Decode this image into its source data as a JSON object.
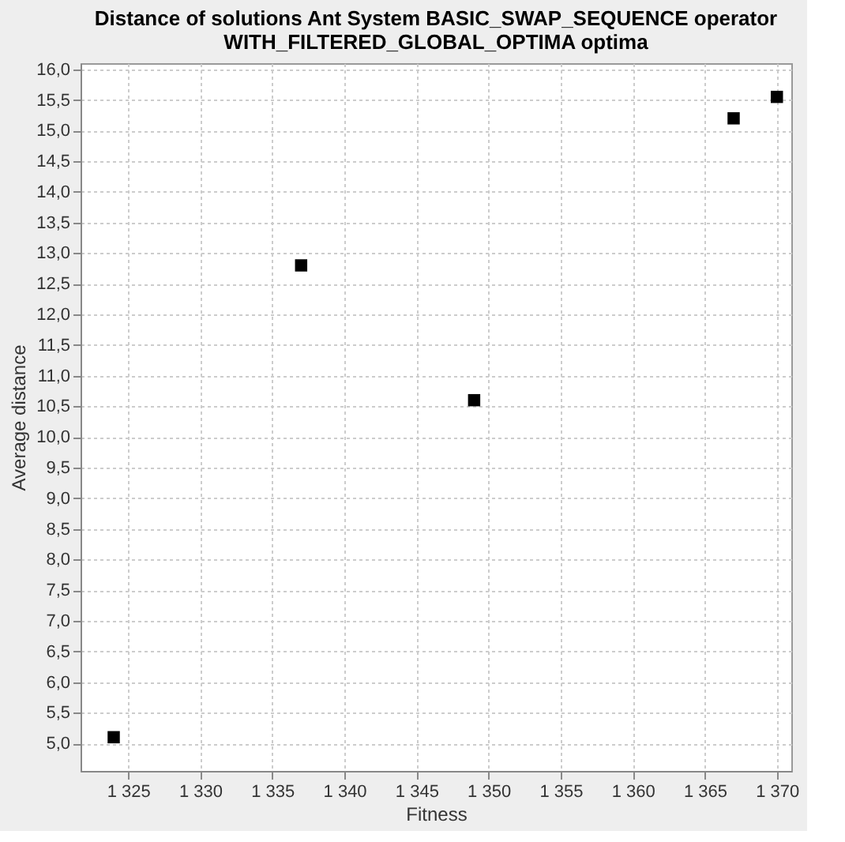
{
  "chart_data": {
    "type": "scatter",
    "title": "Distance of solutions Ant System BASIC_SWAP_SEQUENCE operator\nWITH_FILTERED_GLOBAL_OPTIMA optima",
    "xlabel": "Fitness",
    "ylabel": "Average distance",
    "x": [
      1324,
      1337,
      1349,
      1367,
      1370
    ],
    "series": [
      {
        "color": "#000000",
        "values": [
          5.1,
          12.8,
          10.6,
          15.2,
          15.55
        ]
      }
    ],
    "marker": "square",
    "grid": true,
    "xlim": [
      1321.7,
      1371
    ],
    "ylim": [
      4.55,
      16.1
    ],
    "xticks": [
      {
        "value": 1325,
        "label": "1 325"
      },
      {
        "value": 1330,
        "label": "1 330"
      },
      {
        "value": 1335,
        "label": "1 335"
      },
      {
        "value": 1340,
        "label": "1 340"
      },
      {
        "value": 1345,
        "label": "1 345"
      },
      {
        "value": 1350,
        "label": "1 350"
      },
      {
        "value": 1355,
        "label": "1 355"
      },
      {
        "value": 1360,
        "label": "1 360"
      },
      {
        "value": 1365,
        "label": "1 365"
      },
      {
        "value": 1370,
        "label": "1 370"
      }
    ],
    "yticks": [
      {
        "value": 5.0,
        "label": "5,0"
      },
      {
        "value": 5.5,
        "label": "5,5"
      },
      {
        "value": 6.0,
        "label": "6,0"
      },
      {
        "value": 6.5,
        "label": "6,5"
      },
      {
        "value": 7.0,
        "label": "7,0"
      },
      {
        "value": 7.5,
        "label": "7,5"
      },
      {
        "value": 8.0,
        "label": "8,0"
      },
      {
        "value": 8.5,
        "label": "8,5"
      },
      {
        "value": 9.0,
        "label": "9,0"
      },
      {
        "value": 9.5,
        "label": "9,5"
      },
      {
        "value": 10.0,
        "label": "10,0"
      },
      {
        "value": 10.5,
        "label": "10,5"
      },
      {
        "value": 11.0,
        "label": "11,0"
      },
      {
        "value": 11.5,
        "label": "11,5"
      },
      {
        "value": 12.0,
        "label": "12,0"
      },
      {
        "value": 12.5,
        "label": "12,5"
      },
      {
        "value": 13.0,
        "label": "13,0"
      },
      {
        "value": 13.5,
        "label": "13,5"
      },
      {
        "value": 14.0,
        "label": "14,0"
      },
      {
        "value": 14.5,
        "label": "14,5"
      },
      {
        "value": 15.0,
        "label": "15,0"
      },
      {
        "value": 15.5,
        "label": "15,5"
      },
      {
        "value": 16.0,
        "label": "16,0"
      }
    ]
  }
}
